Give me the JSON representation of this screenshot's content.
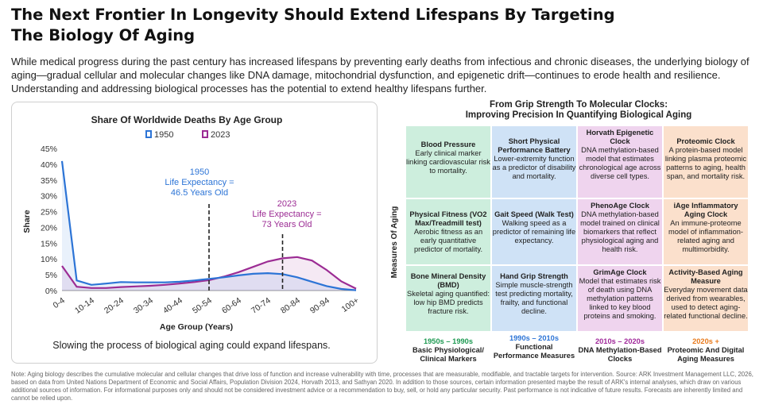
{
  "title": "The Next Frontier In Longevity Should Extend Lifespans By Targeting The Biology Of Aging",
  "intro": "While medical progress during the past century has increased lifespans by preventing early deaths from infectious and chronic diseases, the underlying biology of aging—gradual cellular and molecular changes like DNA damage, mitochondrial dysfunction, and epigenetic drift—continues to erode health and resilience. Understanding and addressing biological processes has the potential to extend healthy lifespans further.",
  "colors": {
    "s1950": "#2c74d6",
    "s2023": "#9c2c94",
    "green": "#cdeedd",
    "blue": "#cfe2f6",
    "pink": "#efd4ee",
    "orange": "#fbe0cc",
    "era_green": "#1e9a52",
    "era_blue": "#2c74d6",
    "era_pink": "#a0289a",
    "era_orange": "#e87a1c"
  },
  "chart_data": {
    "type": "line",
    "title": "Share Of Worldwide Deaths By Age Group",
    "xlabel": "Age Group (Years)",
    "ylabel": "Share",
    "categories": [
      "0-4",
      "5-9",
      "10-14",
      "15-19",
      "20-24",
      "25-29",
      "30-34",
      "35-39",
      "40-44",
      "45-49",
      "50-54",
      "55-59",
      "60-64",
      "65-69",
      "70-74",
      "75-79",
      "80-84",
      "85-89",
      "90-94",
      "95-99",
      "100+"
    ],
    "x_tick_labels": [
      "0-4",
      "10-14",
      "20-24",
      "30-34",
      "40-44",
      "50-54",
      "60-64",
      "70-74",
      "80-84",
      "90-94",
      "100+"
    ],
    "y_ticks": [
      "0%",
      "5%",
      "10%",
      "15%",
      "20%",
      "25%",
      "30%",
      "35%",
      "40%",
      "45%"
    ],
    "ylim": [
      0,
      45
    ],
    "legend": [
      "1950",
      "2023"
    ],
    "series": [
      {
        "name": "1950",
        "values": [
          41,
          3.2,
          1.8,
          2.2,
          2.7,
          2.6,
          2.6,
          2.6,
          2.8,
          3.2,
          3.7,
          4.2,
          4.8,
          5.3,
          5.5,
          5.2,
          4.2,
          2.8,
          1.4,
          0.5,
          0.1
        ]
      },
      {
        "name": "2023",
        "values": [
          7.8,
          1.2,
          0.8,
          0.8,
          1.1,
          1.3,
          1.5,
          1.8,
          2.2,
          2.7,
          3.3,
          4.4,
          5.8,
          7.5,
          9.2,
          10.2,
          10.6,
          9.5,
          6.5,
          2.9,
          0.6
        ]
      }
    ],
    "annotations": [
      {
        "text": "1950",
        "x_category": "50-54"
      },
      {
        "text": "Life Expectancy =",
        "x_category": "50-54"
      },
      {
        "text": "46.5 Years Old",
        "x_category": "50-54"
      },
      {
        "text": "2023",
        "x_category": "75-79"
      },
      {
        "text": "Life Expectancy =",
        "x_category": "75-79"
      },
      {
        "text": "73 Years Old",
        "x_category": "75-79"
      }
    ],
    "reference_lines": [
      {
        "series": "1950",
        "x_category": "50-54"
      },
      {
        "series": "2023",
        "x_category": "75-79"
      }
    ],
    "caption": "Slowing the process of biological aging could expand lifespans."
  },
  "matrix": {
    "title_line1": "From Grip Strength To Molecular Clocks:",
    "title_line2": "Improving Precision In Quantifying Biological Aging",
    "ylabel": "Measures Of Aging",
    "cells": [
      {
        "title": "Blood Pressure",
        "desc": "Early clinical marker linking cardiovascular risk to mortality."
      },
      {
        "title": "Short Physical Performance Battery",
        "desc": "Lower-extremity function as a predictor of disability and mortality."
      },
      {
        "title": "Horvath Epigenetic Clock",
        "desc": "DNA methylation-based model that estimates chronological age across diverse cell types."
      },
      {
        "title": "Proteomic Clock",
        "desc": "A protein-based model linking plasma proteomic patterns to aging, health span, and mortality risk."
      },
      {
        "title": "Physical Fitness (VO2 Max/Treadmill test)",
        "desc": "Aerobic fitness as an early quantitative predictor of mortality."
      },
      {
        "title": "Gait Speed (Walk Test)",
        "desc": "Walking speed as a predictor of remaining life expectancy."
      },
      {
        "title": "PhenoAge Clock",
        "desc": "DNA methylation-based model trained on clinical biomarkers that reflect physiological aging and health risk."
      },
      {
        "title": "iAge Inflammatory Aging Clock",
        "desc": "An immune-proteome model of inflammation-related aging and multimorbidity."
      },
      {
        "title": "Bone Mineral Density (BMD)",
        "desc": "Skeletal aging quantified: low hip BMD predicts fracture risk."
      },
      {
        "title": "Hand Grip Strength",
        "desc": "Simple muscle-strength test predicting mortality, frailty, and functional decline."
      },
      {
        "title": "GrimAge Clock",
        "desc": "Model that estimates risk of death using DNA methylation patterns linked to key blood proteins and smoking."
      },
      {
        "title": "Activity-Based Aging Measure",
        "desc": "Everyday movement data derived from wearables, used to detect aging-related functional decline."
      }
    ],
    "eras": [
      {
        "years": "1950s – 1990s",
        "label": "Basic Physiological/ Clinical Markers"
      },
      {
        "years": "1990s – 2010s",
        "label": "Functional Performance Measures"
      },
      {
        "years": "2010s – 2020s",
        "label": "DNA Methylation-Based Clocks"
      },
      {
        "years": "2020s +",
        "label": "Proteomic And Digital Aging Measures"
      }
    ]
  },
  "footnote": "Note: Aging biology describes the cumulative molecular and cellular changes that drive loss of function and increase vulnerability with time, processes that are measurable, modifiable, and tractable targets for intervention. Source: ARK Investment Management LLC, 2026, based on data from United Nations Department of Economic and Social Affairs, Population Division 2024, Horvath 2013, and Sathyan 2020. In addition to those sources, certain information presented maybe the result of ARK's internal analyses, which draw on various additional sources of information. For informational purposes only and should not be considered investment advice or a recommendation to buy, sell, or hold any particular security. Past performance is not indicative of future results. Forecasts are inherently limited and cannot be relied upon."
}
